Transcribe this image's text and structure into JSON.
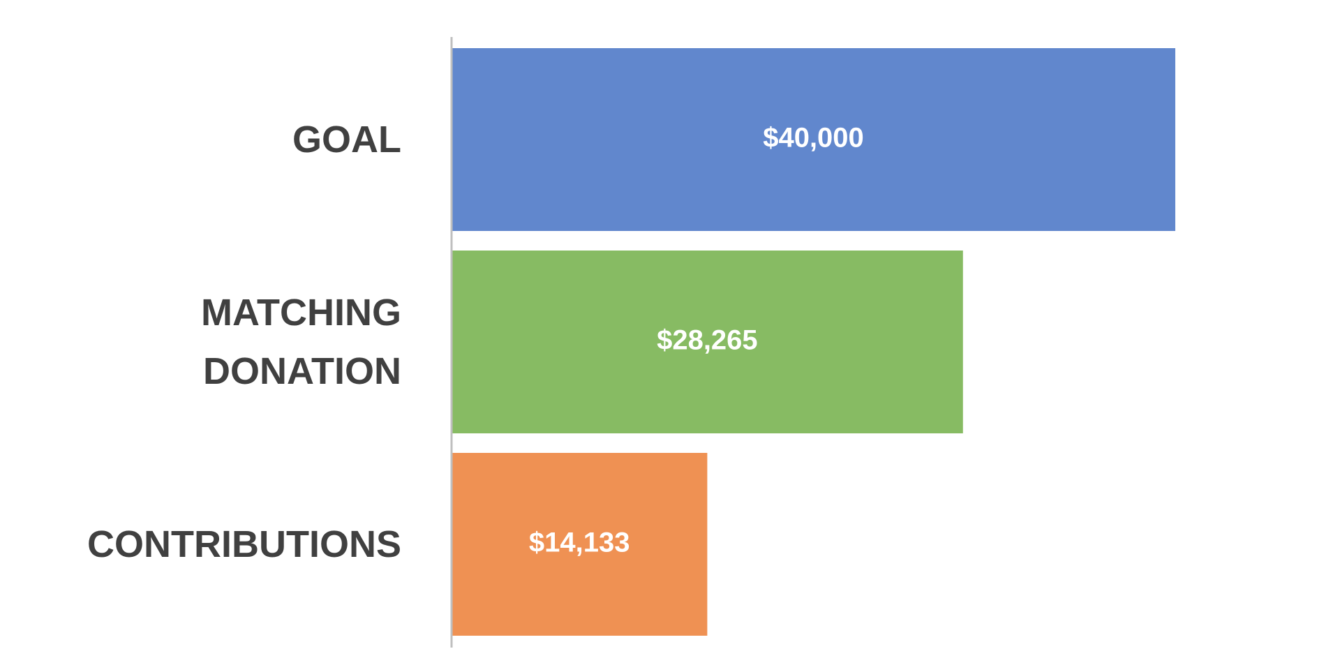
{
  "chart_data": {
    "type": "hbar",
    "categories": [
      "GOAL",
      "MATCHING DONATION",
      "CONTRIBUTIONS"
    ],
    "values": [
      40000,
      28265,
      14133
    ],
    "value_labels": [
      "$40,000",
      "$28,265",
      "$14,133"
    ],
    "colors": [
      "#6187cd",
      "#87bb63",
      "#ef9153"
    ],
    "xlim": [
      0,
      40000
    ]
  }
}
